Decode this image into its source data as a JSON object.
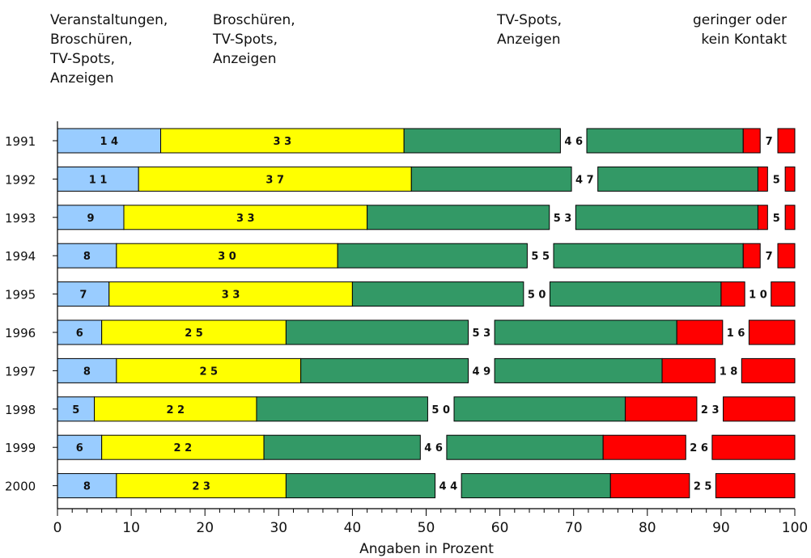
{
  "chart_data": {
    "type": "bar",
    "orientation": "horizontal",
    "stacked": true,
    "categories": [
      "1991",
      "1992",
      "1993",
      "1994",
      "1995",
      "1996",
      "1997",
      "1998",
      "1999",
      "2000"
    ],
    "series": [
      {
        "name": "Veranstaltungen, Broschüren, TV-Spots, Anzeigen",
        "color": "#99CCFF",
        "values": [
          14,
          11,
          9,
          8,
          7,
          6,
          8,
          5,
          6,
          8
        ]
      },
      {
        "name": "Broschüren, TV-Spots, Anzeigen",
        "color": "#FFFF00",
        "values": [
          33,
          37,
          33,
          30,
          33,
          25,
          25,
          22,
          22,
          23
        ]
      },
      {
        "name": "TV-Spots, Anzeigen",
        "color": "#339966",
        "values": [
          46,
          47,
          53,
          55,
          50,
          53,
          49,
          50,
          46,
          44
        ]
      },
      {
        "name": "geringer oder kein Kontakt",
        "color": "#FF0000",
        "values": [
          7,
          5,
          5,
          7,
          10,
          16,
          18,
          23,
          26,
          25
        ]
      }
    ],
    "xlabel": "Angaben in Prozent",
    "ylabel": "",
    "xlim": [
      0,
      100
    ],
    "xticks": [
      "0",
      "10",
      "20",
      "30",
      "40",
      "50",
      "60",
      "70",
      "80",
      "90",
      "100"
    ],
    "grid": false,
    "legend_position": "top"
  },
  "legend": [
    {
      "lines": [
        "Veranstaltungen,",
        "Broschüren,",
        "TV-Spots,",
        "Anzeigen"
      ]
    },
    {
      "lines": [
        "Broschüren,",
        "TV-Spots,",
        "Anzeigen"
      ]
    },
    {
      "lines": [
        "TV-Spots,",
        "Anzeigen"
      ]
    },
    {
      "lines": [
        "geringer oder",
        "kein Kontakt"
      ]
    }
  ]
}
